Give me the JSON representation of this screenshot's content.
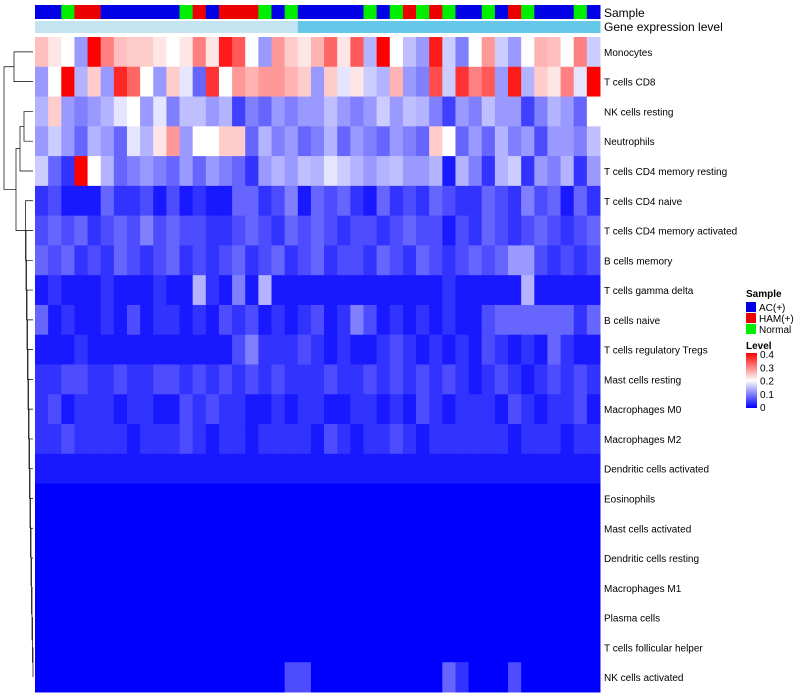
{
  "chart_data": {
    "type": "heatmap",
    "title": "",
    "annotation_labels": {
      "sample": "Sample",
      "expression": "Gene expression level"
    },
    "sample_groups": [
      "AC",
      "AC",
      "N",
      "H",
      "H",
      "AC",
      "AC",
      "AC",
      "AC",
      "AC",
      "AC",
      "N",
      "H",
      "AC",
      "H",
      "H",
      "H",
      "N",
      "AC",
      "N",
      "AC",
      "AC",
      "AC",
      "AC",
      "AC",
      "N",
      "AC",
      "N",
      "H",
      "N",
      "H",
      "N",
      "AC",
      "AC",
      "N",
      "AC",
      "H",
      "N",
      "AC",
      "AC",
      "AC",
      "N",
      "AC"
    ],
    "expression_strip": [
      "d",
      "d",
      "d",
      "d",
      "d",
      "d",
      "d",
      "d",
      "d",
      "d",
      "d",
      "d",
      "d",
      "d",
      "d",
      "d",
      "d",
      "d",
      "d",
      "d",
      "l",
      "l",
      "l",
      "l",
      "l",
      "l",
      "l",
      "l",
      "l",
      "l",
      "l",
      "l",
      "l",
      "l",
      "l",
      "l",
      "l",
      "l",
      "l",
      "l",
      "l",
      "l",
      "l"
    ],
    "rows": [
      "Monocytes",
      "T cells CD8",
      "NK cells resting",
      "Neutrophils",
      "T cells CD4 memory resting",
      "T cells CD4 naive",
      "T cells CD4 memory activated",
      "B cells memory",
      "T cells gamma delta",
      "B cells naive",
      "T cells regulatory  Tregs",
      "Mast cells resting",
      "Macrophages M0",
      "Macrophages M2",
      "Dendritic cells activated",
      "Eosinophils",
      "Mast cells activated",
      "Dendritic cells resting",
      "Macrophages M1",
      "Plasma cells",
      "T cells follicular helper",
      "NK cells activated"
    ],
    "values": [
      [
        0.25,
        0.22,
        0.2,
        0.12,
        0.4,
        0.3,
        0.25,
        0.24,
        0.24,
        0.22,
        0.2,
        0.22,
        0.3,
        0.22,
        0.38,
        0.33,
        0.2,
        0.12,
        0.28,
        0.24,
        0.22,
        0.26,
        0.32,
        0.22,
        0.33,
        0.14,
        0.4,
        0.2,
        0.15,
        0.12,
        0.38,
        0.16,
        0.1,
        0.2,
        0.28,
        0.16,
        0.12,
        0.2,
        0.26,
        0.25,
        0.2,
        0.3,
        0.16
      ],
      [
        0.12,
        0.2,
        0.4,
        0.14,
        0.24,
        0.12,
        0.37,
        0.32,
        0.2,
        0.12,
        0.24,
        0.18,
        0.08,
        0.36,
        0.2,
        0.28,
        0.26,
        0.28,
        0.28,
        0.26,
        0.24,
        0.12,
        0.24,
        0.18,
        0.22,
        0.16,
        0.14,
        0.26,
        0.12,
        0.1,
        0.34,
        0.16,
        0.36,
        0.3,
        0.33,
        0.12,
        0.38,
        0.14,
        0.24,
        0.22,
        0.3,
        0.18,
        0.4
      ],
      [
        0.14,
        0.24,
        0.12,
        0.1,
        0.12,
        0.14,
        0.18,
        0.2,
        0.12,
        0.18,
        0.1,
        0.15,
        0.15,
        0.12,
        0.14,
        0.05,
        0.1,
        0.08,
        0.12,
        0.1,
        0.12,
        0.12,
        0.15,
        0.12,
        0.1,
        0.12,
        0.16,
        0.12,
        0.15,
        0.14,
        0.1,
        0.05,
        0.12,
        0.1,
        0.15,
        0.12,
        0.12,
        0.05,
        0.1,
        0.14,
        0.12,
        0.08,
        0.2
      ],
      [
        0.12,
        0.16,
        0.12,
        0.08,
        0.14,
        0.12,
        0.08,
        0.18,
        0.14,
        0.22,
        0.28,
        0.12,
        0.2,
        0.2,
        0.24,
        0.24,
        0.08,
        0.14,
        0.1,
        0.12,
        0.08,
        0.1,
        0.14,
        0.08,
        0.12,
        0.1,
        0.08,
        0.12,
        0.1,
        0.08,
        0.24,
        0.2,
        0.08,
        0.12,
        0.08,
        0.14,
        0.1,
        0.12,
        0.06,
        0.12,
        0.12,
        0.1,
        0.15
      ],
      [
        0.16,
        0.08,
        0.04,
        0.4,
        0.2,
        0.14,
        0.08,
        0.1,
        0.12,
        0.1,
        0.08,
        0.12,
        0.08,
        0.12,
        0.1,
        0.08,
        0.04,
        0.12,
        0.14,
        0.12,
        0.15,
        0.14,
        0.18,
        0.16,
        0.14,
        0.12,
        0.14,
        0.15,
        0.12,
        0.12,
        0.14,
        0.02,
        0.14,
        0.1,
        0.04,
        0.14,
        0.16,
        0.04,
        0.12,
        0.1,
        0.14,
        0.04,
        0.12
      ],
      [
        0.04,
        0.06,
        0.02,
        0.02,
        0.02,
        0.08,
        0.04,
        0.04,
        0.06,
        0.02,
        0.06,
        0.02,
        0.04,
        0.02,
        0.02,
        0.08,
        0.08,
        0.04,
        0.06,
        0.1,
        0.02,
        0.08,
        0.06,
        0.08,
        0.04,
        0.02,
        0.08,
        0.04,
        0.06,
        0.04,
        0.08,
        0.06,
        0.04,
        0.04,
        0.08,
        0.06,
        0.04,
        0.1,
        0.06,
        0.08,
        0.02,
        0.08,
        0.04
      ],
      [
        0.06,
        0.08,
        0.06,
        0.08,
        0.04,
        0.06,
        0.08,
        0.06,
        0.1,
        0.06,
        0.08,
        0.06,
        0.06,
        0.04,
        0.04,
        0.06,
        0.08,
        0.06,
        0.04,
        0.08,
        0.06,
        0.08,
        0.06,
        0.04,
        0.06,
        0.06,
        0.04,
        0.06,
        0.08,
        0.06,
        0.06,
        0.02,
        0.06,
        0.04,
        0.08,
        0.06,
        0.04,
        0.06,
        0.08,
        0.06,
        0.04,
        0.06,
        0.08
      ],
      [
        0.08,
        0.06,
        0.08,
        0.04,
        0.06,
        0.04,
        0.08,
        0.06,
        0.04,
        0.06,
        0.08,
        0.04,
        0.06,
        0.04,
        0.06,
        0.08,
        0.04,
        0.06,
        0.08,
        0.04,
        0.06,
        0.08,
        0.04,
        0.06,
        0.06,
        0.04,
        0.08,
        0.06,
        0.04,
        0.08,
        0.06,
        0.04,
        0.06,
        0.08,
        0.06,
        0.08,
        0.12,
        0.12,
        0.06,
        0.04,
        0.06,
        0.04,
        0.06
      ],
      [
        0.02,
        0.04,
        0.02,
        0.02,
        0.02,
        0.04,
        0.02,
        0.02,
        0.02,
        0.04,
        0.02,
        0.02,
        0.14,
        0.04,
        0.02,
        0.1,
        0.02,
        0.14,
        0.02,
        0.02,
        0.02,
        0.02,
        0.02,
        0.02,
        0.02,
        0.02,
        0.02,
        0.02,
        0.02,
        0.02,
        0.02,
        0.04,
        0.02,
        0.02,
        0.02,
        0.02,
        0.02,
        0.14,
        0.02,
        0.02,
        0.02,
        0.02,
        0.02
      ],
      [
        0.08,
        0.02,
        0.04,
        0.02,
        0.02,
        0.04,
        0.02,
        0.06,
        0.02,
        0.04,
        0.04,
        0.02,
        0.04,
        0.02,
        0.06,
        0.04,
        0.06,
        0.02,
        0.04,
        0.02,
        0.04,
        0.06,
        0.02,
        0.04,
        0.1,
        0.06,
        0.02,
        0.04,
        0.02,
        0.04,
        0.02,
        0.04,
        0.02,
        0.02,
        0.06,
        0.08,
        0.08,
        0.08,
        0.08,
        0.08,
        0.08,
        0.04,
        0.08
      ],
      [
        0.02,
        0.02,
        0.02,
        0.04,
        0.02,
        0.02,
        0.02,
        0.02,
        0.02,
        0.02,
        0.02,
        0.02,
        0.02,
        0.02,
        0.02,
        0.06,
        0.1,
        0.04,
        0.04,
        0.04,
        0.06,
        0.04,
        0.02,
        0.04,
        0.02,
        0.02,
        0.04,
        0.06,
        0.04,
        0.02,
        0.04,
        0.02,
        0.04,
        0.02,
        0.06,
        0.04,
        0.02,
        0.04,
        0.02,
        0.08,
        0.04,
        0.02,
        0.02
      ],
      [
        0.04,
        0.04,
        0.06,
        0.06,
        0.04,
        0.04,
        0.06,
        0.04,
        0.04,
        0.06,
        0.06,
        0.04,
        0.06,
        0.04,
        0.06,
        0.04,
        0.06,
        0.04,
        0.06,
        0.04,
        0.04,
        0.04,
        0.06,
        0.04,
        0.04,
        0.06,
        0.04,
        0.06,
        0.04,
        0.06,
        0.04,
        0.06,
        0.04,
        0.02,
        0.04,
        0.06,
        0.04,
        0.02,
        0.04,
        0.06,
        0.04,
        0.06,
        0.04
      ],
      [
        0.04,
        0.06,
        0.02,
        0.04,
        0.04,
        0.04,
        0.02,
        0.04,
        0.04,
        0.02,
        0.02,
        0.06,
        0.04,
        0.06,
        0.04,
        0.04,
        0.02,
        0.02,
        0.04,
        0.02,
        0.04,
        0.04,
        0.02,
        0.02,
        0.04,
        0.04,
        0.02,
        0.04,
        0.02,
        0.06,
        0.04,
        0.02,
        0.04,
        0.04,
        0.04,
        0.02,
        0.06,
        0.04,
        0.02,
        0.04,
        0.04,
        0.06,
        0.02
      ],
      [
        0.04,
        0.04,
        0.06,
        0.04,
        0.04,
        0.04,
        0.04,
        0.02,
        0.04,
        0.04,
        0.04,
        0.06,
        0.04,
        0.02,
        0.04,
        0.04,
        0.02,
        0.04,
        0.04,
        0.04,
        0.04,
        0.02,
        0.06,
        0.04,
        0.02,
        0.04,
        0.04,
        0.06,
        0.04,
        0.02,
        0.04,
        0.04,
        0.04,
        0.04,
        0.04,
        0.04,
        0.02,
        0.04,
        0.04,
        0.04,
        0.02,
        0.04,
        0.04
      ],
      [
        0.02,
        0.02,
        0.02,
        0.02,
        0.02,
        0.02,
        0.02,
        0.02,
        0.02,
        0.02,
        0.02,
        0.02,
        0.02,
        0.02,
        0.02,
        0.02,
        0.02,
        0.02,
        0.02,
        0.02,
        0.02,
        0.02,
        0.02,
        0.02,
        0.02,
        0.02,
        0.02,
        0.02,
        0.02,
        0.02,
        0.02,
        0.02,
        0.02,
        0.02,
        0.02,
        0.02,
        0.02,
        0.02,
        0.02,
        0.02,
        0.02,
        0.02,
        0.02
      ],
      [
        0,
        0,
        0,
        0,
        0,
        0,
        0,
        0,
        0,
        0,
        0,
        0,
        0,
        0,
        0,
        0,
        0,
        0,
        0,
        0,
        0,
        0,
        0,
        0,
        0,
        0,
        0,
        0,
        0,
        0,
        0,
        0,
        0,
        0,
        0,
        0,
        0,
        0,
        0,
        0,
        0,
        0,
        0
      ],
      [
        0,
        0,
        0,
        0,
        0,
        0,
        0,
        0,
        0,
        0,
        0,
        0,
        0,
        0,
        0,
        0,
        0,
        0,
        0,
        0,
        0,
        0,
        0,
        0,
        0,
        0,
        0,
        0,
        0,
        0,
        0,
        0,
        0,
        0,
        0,
        0,
        0,
        0,
        0,
        0,
        0,
        0,
        0
      ],
      [
        0,
        0,
        0,
        0,
        0,
        0,
        0,
        0,
        0,
        0,
        0,
        0,
        0,
        0,
        0,
        0,
        0,
        0,
        0,
        0,
        0,
        0,
        0,
        0,
        0,
        0,
        0,
        0,
        0,
        0,
        0,
        0,
        0,
        0,
        0,
        0,
        0,
        0,
        0,
        0,
        0,
        0,
        0
      ],
      [
        0,
        0,
        0,
        0,
        0,
        0,
        0,
        0,
        0,
        0,
        0,
        0,
        0,
        0,
        0,
        0,
        0,
        0,
        0,
        0,
        0,
        0,
        0,
        0,
        0,
        0,
        0,
        0,
        0,
        0,
        0,
        0,
        0,
        0,
        0,
        0,
        0,
        0,
        0,
        0,
        0,
        0,
        0
      ],
      [
        0,
        0,
        0,
        0,
        0,
        0,
        0,
        0,
        0,
        0,
        0,
        0,
        0,
        0,
        0,
        0,
        0,
        0,
        0,
        0,
        0,
        0,
        0,
        0,
        0,
        0,
        0,
        0,
        0,
        0,
        0,
        0,
        0,
        0,
        0,
        0,
        0,
        0,
        0,
        0,
        0,
        0,
        0
      ],
      [
        0,
        0,
        0,
        0,
        0,
        0,
        0,
        0,
        0,
        0,
        0,
        0,
        0,
        0,
        0,
        0,
        0,
        0,
        0,
        0,
        0,
        0,
        0,
        0,
        0,
        0,
        0,
        0,
        0,
        0,
        0,
        0,
        0,
        0,
        0,
        0,
        0,
        0,
        0,
        0,
        0,
        0,
        0
      ],
      [
        0,
        0,
        0,
        0,
        0,
        0,
        0,
        0,
        0,
        0,
        0,
        0,
        0,
        0,
        0,
        0,
        0,
        0,
        0,
        0.06,
        0.06,
        0,
        0,
        0,
        0,
        0,
        0,
        0,
        0,
        0,
        0,
        0.08,
        0.04,
        0,
        0,
        0,
        0.06,
        0,
        0,
        0,
        0,
        0,
        0
      ]
    ],
    "color_scale": {
      "min": 0,
      "max": 0.4,
      "low": "#0000ff",
      "mid": "#ffffff",
      "high": "#ff0000"
    },
    "legend": {
      "sample_title": "Sample",
      "sample_entries": [
        {
          "key": "AC",
          "label": "AC(+)",
          "color": "#0000e6"
        },
        {
          "key": "H",
          "label": "HAM(+)",
          "color": "#ee0000"
        },
        {
          "key": "N",
          "label": "Normal",
          "color": "#00ee00"
        }
      ],
      "level_title": "Level",
      "level_ticks": [
        "0.4",
        "0.3",
        "0.2",
        "0.1",
        "0"
      ],
      "position": "right"
    },
    "strip_colors": {
      "d": "#c4e4f2",
      "l": "#66c8e8"
    }
  }
}
